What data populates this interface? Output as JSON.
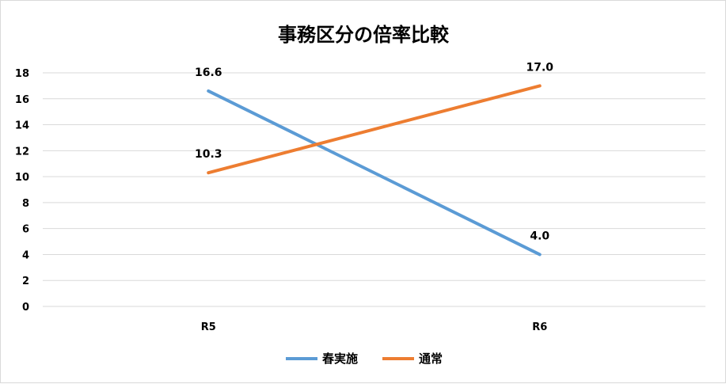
{
  "chart_data": {
    "type": "line",
    "title": "事務区分の倍率比較",
    "categories": [
      "R5",
      "R6"
    ],
    "ylim": [
      0,
      18
    ],
    "yticks": [
      0,
      2,
      4,
      6,
      8,
      10,
      12,
      14,
      16,
      18
    ],
    "grid": true,
    "legend_position": "bottom",
    "series": [
      {
        "name": "春実施",
        "color": "#5B9BD5",
        "values": [
          16.6,
          4.0
        ],
        "labels": [
          "16.6",
          "4.0"
        ]
      },
      {
        "name": "通常",
        "color": "#ED7D31",
        "values": [
          10.3,
          17.0
        ],
        "labels": [
          "10.3",
          "17.0"
        ]
      }
    ]
  }
}
